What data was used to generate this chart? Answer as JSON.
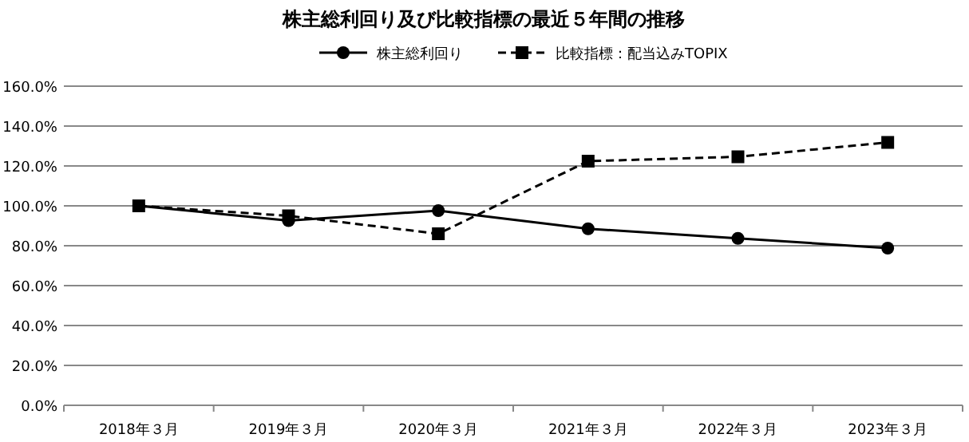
{
  "chart_data": {
    "type": "line",
    "title": "株主総利回り及び比較指標の最近５年間の推移",
    "categories": [
      "2018年３月",
      "2019年３月",
      "2020年３月",
      "2021年３月",
      "2022年３月",
      "2023年３月"
    ],
    "series": [
      {
        "name": "株主総利回り",
        "color": "#000000",
        "values": [
          100,
          92.6,
          97.6,
          88.5,
          83.7,
          78.8
        ],
        "marker": "circle",
        "line_style": "solid"
      },
      {
        "name": "比較指標：配当込みTOPIX",
        "color": "#000000",
        "values": [
          100,
          95,
          86,
          122.4,
          124.6,
          131.8
        ],
        "marker": "square",
        "line_style": "dashed"
      }
    ],
    "ylim": [
      0,
      160
    ],
    "yticks": [
      {
        "value": 0,
        "label": "0.0%"
      },
      {
        "value": 20,
        "label": "20.0%"
      },
      {
        "value": 40,
        "label": "40.0%"
      },
      {
        "value": 60,
        "label": "60.0%"
      },
      {
        "value": 80,
        "label": "80.0%"
      },
      {
        "value": 100,
        "label": "100.0%"
      },
      {
        "value": 120,
        "label": "120.0%"
      },
      {
        "value": 140,
        "label": "140.0%"
      },
      {
        "value": 160,
        "label": "160.0%"
      }
    ],
    "grid": "y",
    "legend": "top"
  }
}
